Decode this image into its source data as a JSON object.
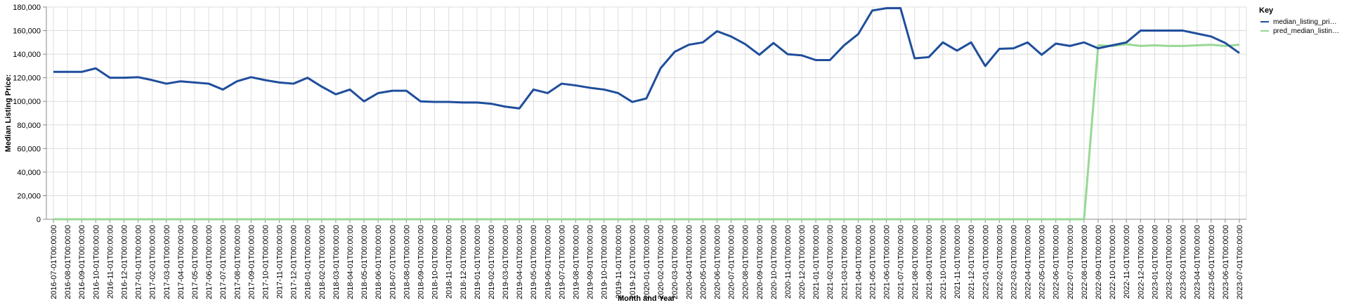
{
  "chart_data": {
    "type": "line",
    "xlabel": "Month and Year",
    "ylabel": "Median Listing Price:",
    "ylim": [
      0,
      180000
    ],
    "yticks": [
      "0",
      "20,000",
      "40,000",
      "60,000",
      "80,000",
      "100,000",
      "120,000",
      "140,000",
      "160,000",
      "180,000"
    ],
    "grid": true,
    "legend_position": "top-right",
    "legend_title": "Key",
    "x": [
      "2016-07-01T00:00:00",
      "2016-08-01T00:00:00",
      "2016-09-01T00:00:00",
      "2016-10-01T00:00:00",
      "2016-11-01T00:00:00",
      "2016-12-01T00:00:00",
      "2017-01-01T00:00:00",
      "2017-02-01T00:00:00",
      "2017-03-01T00:00:00",
      "2017-04-01T00:00:00",
      "2017-05-01T00:00:00",
      "2017-06-01T00:00:00",
      "2017-07-01T00:00:00",
      "2017-08-01T00:00:00",
      "2017-09-01T00:00:00",
      "2017-10-01T00:00:00",
      "2017-11-01T00:00:00",
      "2017-12-01T00:00:00",
      "2018-01-01T00:00:00",
      "2018-02-01T00:00:00",
      "2018-03-01T00:00:00",
      "2018-04-01T00:00:00",
      "2018-05-01T00:00:00",
      "2018-06-01T00:00:00",
      "2018-07-01T00:00:00",
      "2018-08-01T00:00:00",
      "2018-09-01T00:00:00",
      "2018-10-01T00:00:00",
      "2018-11-01T00:00:00",
      "2018-12-01T00:00:00",
      "2019-01-01T00:00:00",
      "2019-02-01T00:00:00",
      "2019-03-01T00:00:00",
      "2019-04-01T00:00:00",
      "2019-05-01T00:00:00",
      "2019-06-01T00:00:00",
      "2019-07-01T00:00:00",
      "2019-08-01T00:00:00",
      "2019-09-01T00:00:00",
      "2019-10-01T00:00:00",
      "2019-11-01T00:00:00",
      "2019-12-01T00:00:00",
      "2020-01-01T00:00:00",
      "2020-02-01T00:00:00",
      "2020-03-01T00:00:00",
      "2020-04-01T00:00:00",
      "2020-05-01T00:00:00",
      "2020-06-01T00:00:00",
      "2020-07-01T00:00:00",
      "2020-08-01T00:00:00",
      "2020-09-01T00:00:00",
      "2020-10-01T00:00:00",
      "2020-11-01T00:00:00",
      "2020-12-01T00:00:00",
      "2021-01-01T00:00:00",
      "2021-02-01T00:00:00",
      "2021-03-01T00:00:00",
      "2021-04-01T00:00:00",
      "2021-05-01T00:00:00",
      "2021-06-01T00:00:00",
      "2021-07-01T00:00:00",
      "2021-08-01T00:00:00",
      "2021-09-01T00:00:00",
      "2021-10-01T00:00:00",
      "2021-11-01T00:00:00",
      "2021-12-01T00:00:00",
      "2022-01-01T00:00:00",
      "2022-02-01T00:00:00",
      "2022-03-01T00:00:00",
      "2022-04-01T00:00:00",
      "2022-05-01T00:00:00",
      "2022-06-01T00:00:00",
      "2022-07-01T00:00:00",
      "2022-08-01T00:00:00",
      "2022-09-01T00:00:00",
      "2022-10-01T00:00:00",
      "2022-11-01T00:00:00",
      "2022-12-01T00:00:00",
      "2023-01-01T00:00:00",
      "2023-02-01T00:00:00",
      "2023-03-01T00:00:00",
      "2023-04-01T00:00:00",
      "2023-05-01T00:00:00",
      "2023-06-01T00:00:00",
      "2023-07-01T00:00:00"
    ],
    "series": [
      {
        "name": "median_listing_pri…",
        "color": "#1f4e9c",
        "values": [
          125000,
          125000,
          125000,
          128000,
          120000,
          120000,
          120500,
          118000,
          115000,
          117000,
          116000,
          115000,
          110000,
          117000,
          120500,
          118000,
          116000,
          115000,
          120000,
          112500,
          106000,
          110000,
          100000,
          107000,
          109000,
          109000,
          100000,
          99500,
          99500,
          99000,
          99000,
          98000,
          95500,
          94000,
          110000,
          107000,
          115000,
          113500,
          111500,
          110000,
          107000,
          99500,
          102500,
          128000,
          142000,
          148000,
          150000,
          159500,
          155000,
          148500,
          139500,
          149500,
          140000,
          139000,
          135000,
          135000,
          147500,
          157000,
          177000,
          179000,
          179000,
          136500,
          137500,
          150000,
          143000,
          150000,
          130000,
          144500,
          145000,
          150000,
          139500,
          149000,
          147000,
          150000,
          145000,
          147500,
          150000,
          160000,
          160000,
          160000,
          160000,
          157500,
          155000,
          149500,
          141000
        ]
      },
      {
        "name": "pred_median_listin…",
        "color": "#98d895",
        "values": [
          0,
          0,
          0,
          0,
          0,
          0,
          0,
          0,
          0,
          0,
          0,
          0,
          0,
          0,
          0,
          0,
          0,
          0,
          0,
          0,
          0,
          0,
          0,
          0,
          0,
          0,
          0,
          0,
          0,
          0,
          0,
          0,
          0,
          0,
          0,
          0,
          0,
          0,
          0,
          0,
          0,
          0,
          0,
          0,
          0,
          0,
          0,
          0,
          0,
          0,
          0,
          0,
          0,
          0,
          0,
          0,
          0,
          0,
          0,
          0,
          0,
          0,
          0,
          0,
          0,
          0,
          0,
          0,
          0,
          0,
          0,
          0,
          0,
          0,
          147500,
          147000,
          148500,
          147000,
          147500,
          147000,
          147000,
          147500,
          148000,
          147000,
          148000
        ]
      }
    ]
  }
}
